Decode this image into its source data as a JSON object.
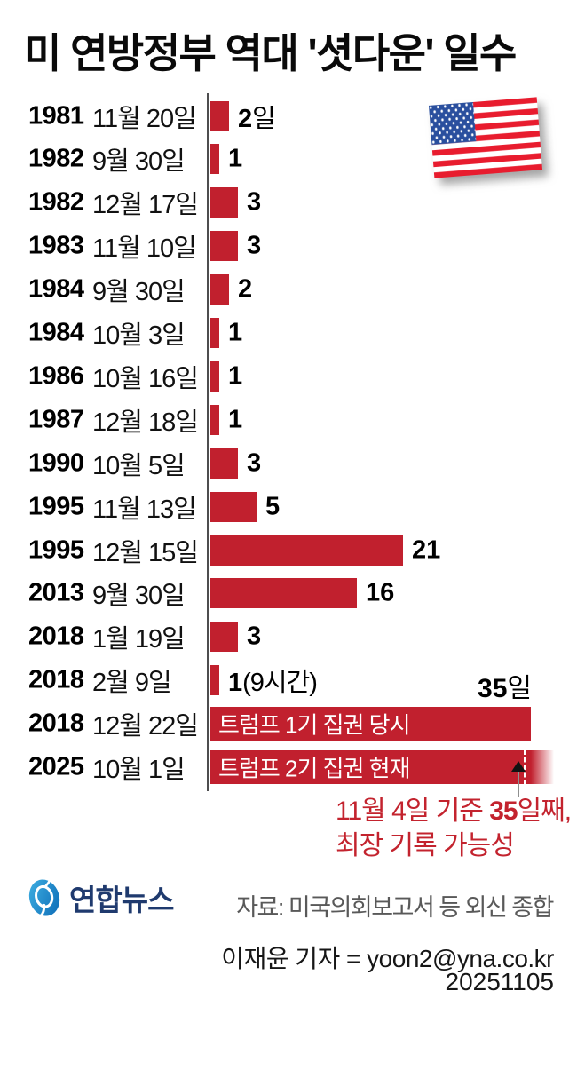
{
  "header": {
    "title": "미 연방정부 역대 '셧다운' 일수"
  },
  "colors": {
    "bar": "#c1202e",
    "axis": "#4d4d4f",
    "annotation_red": "#c3232e",
    "flag_red": "#e81c2e",
    "flag_blue": "#2a4f9e",
    "logo_blue": "#1e8fd0",
    "logo_navy": "#1f3a6e",
    "source_gray": "#595959"
  },
  "chart_data": {
    "type": "bar",
    "orientation": "horizontal",
    "unit": "일",
    "xlim": [
      0,
      35
    ],
    "categories": [
      "1981 11월 20일",
      "1982 9월 30일",
      "1982 12월 17일",
      "1983 11월 10일",
      "1984 9월 30일",
      "1984 10월 3일",
      "1986 10월 16일",
      "1987 12월 18일",
      "1990 10월 5일",
      "1995 11월 13일",
      "1995 12월 15일",
      "2013 9월 30일",
      "2018 1월 19일",
      "2018 2월 9일",
      "2018 12월 22일",
      "2025 10월 1일"
    ],
    "values": [
      2,
      1,
      3,
      3,
      2,
      1,
      1,
      1,
      3,
      5,
      21,
      16,
      3,
      1,
      35,
      35
    ],
    "rows": [
      {
        "year": "1981",
        "date": "11월 20일",
        "days": 2,
        "label": "2",
        "suffix": "일"
      },
      {
        "year": "1982",
        "date": "9월 30일",
        "days": 1,
        "label": "1",
        "suffix": ""
      },
      {
        "year": "1982",
        "date": "12월 17일",
        "days": 3,
        "label": "3",
        "suffix": ""
      },
      {
        "year": "1983",
        "date": "11월 10일",
        "days": 3,
        "label": "3",
        "suffix": ""
      },
      {
        "year": "1984",
        "date": "9월 30일",
        "days": 2,
        "label": "2",
        "suffix": ""
      },
      {
        "year": "1984",
        "date": "10월 3일",
        "days": 1,
        "label": "1",
        "suffix": ""
      },
      {
        "year": "1986",
        "date": "10월 16일",
        "days": 1,
        "label": "1",
        "suffix": ""
      },
      {
        "year": "1987",
        "date": "12월 18일",
        "days": 1,
        "label": "1",
        "suffix": ""
      },
      {
        "year": "1990",
        "date": "10월 5일",
        "days": 3,
        "label": "3",
        "suffix": ""
      },
      {
        "year": "1995",
        "date": "11월 13일",
        "days": 5,
        "label": "5",
        "suffix": ""
      },
      {
        "year": "1995",
        "date": "12월 15일",
        "days": 21,
        "label": "21",
        "suffix": ""
      },
      {
        "year": "2013",
        "date": "9월 30일",
        "days": 16,
        "label": "16",
        "suffix": ""
      },
      {
        "year": "2018",
        "date": "1월 19일",
        "days": 3,
        "label": "3",
        "suffix": ""
      },
      {
        "year": "2018",
        "date": "2월 9일",
        "days": 1,
        "label": "1",
        "suffix": "(9시간)"
      },
      {
        "year": "2018",
        "date": "12월 22일",
        "days": 35,
        "bar_text": "트럼프 1기 집권 당시"
      },
      {
        "year": "2025",
        "date": "10월 1일",
        "days": 35,
        "bar_text": "트럼프 2기 집권 현재",
        "ongoing": true
      }
    ],
    "max_label": {
      "bold": "35",
      "suffix": "일"
    }
  },
  "annotation": {
    "line1_pre": "11월 4일 기준 ",
    "line1_bold": "35",
    "line1_post": "일째,",
    "line2": "최장 기록 가능성"
  },
  "footer": {
    "logo_text": "연합뉴스",
    "source": "자료: 미국의회보고서 등 외신 종합",
    "reporter": "이재윤 기자 = yoon2@yna.co.kr",
    "date": "20251105"
  }
}
